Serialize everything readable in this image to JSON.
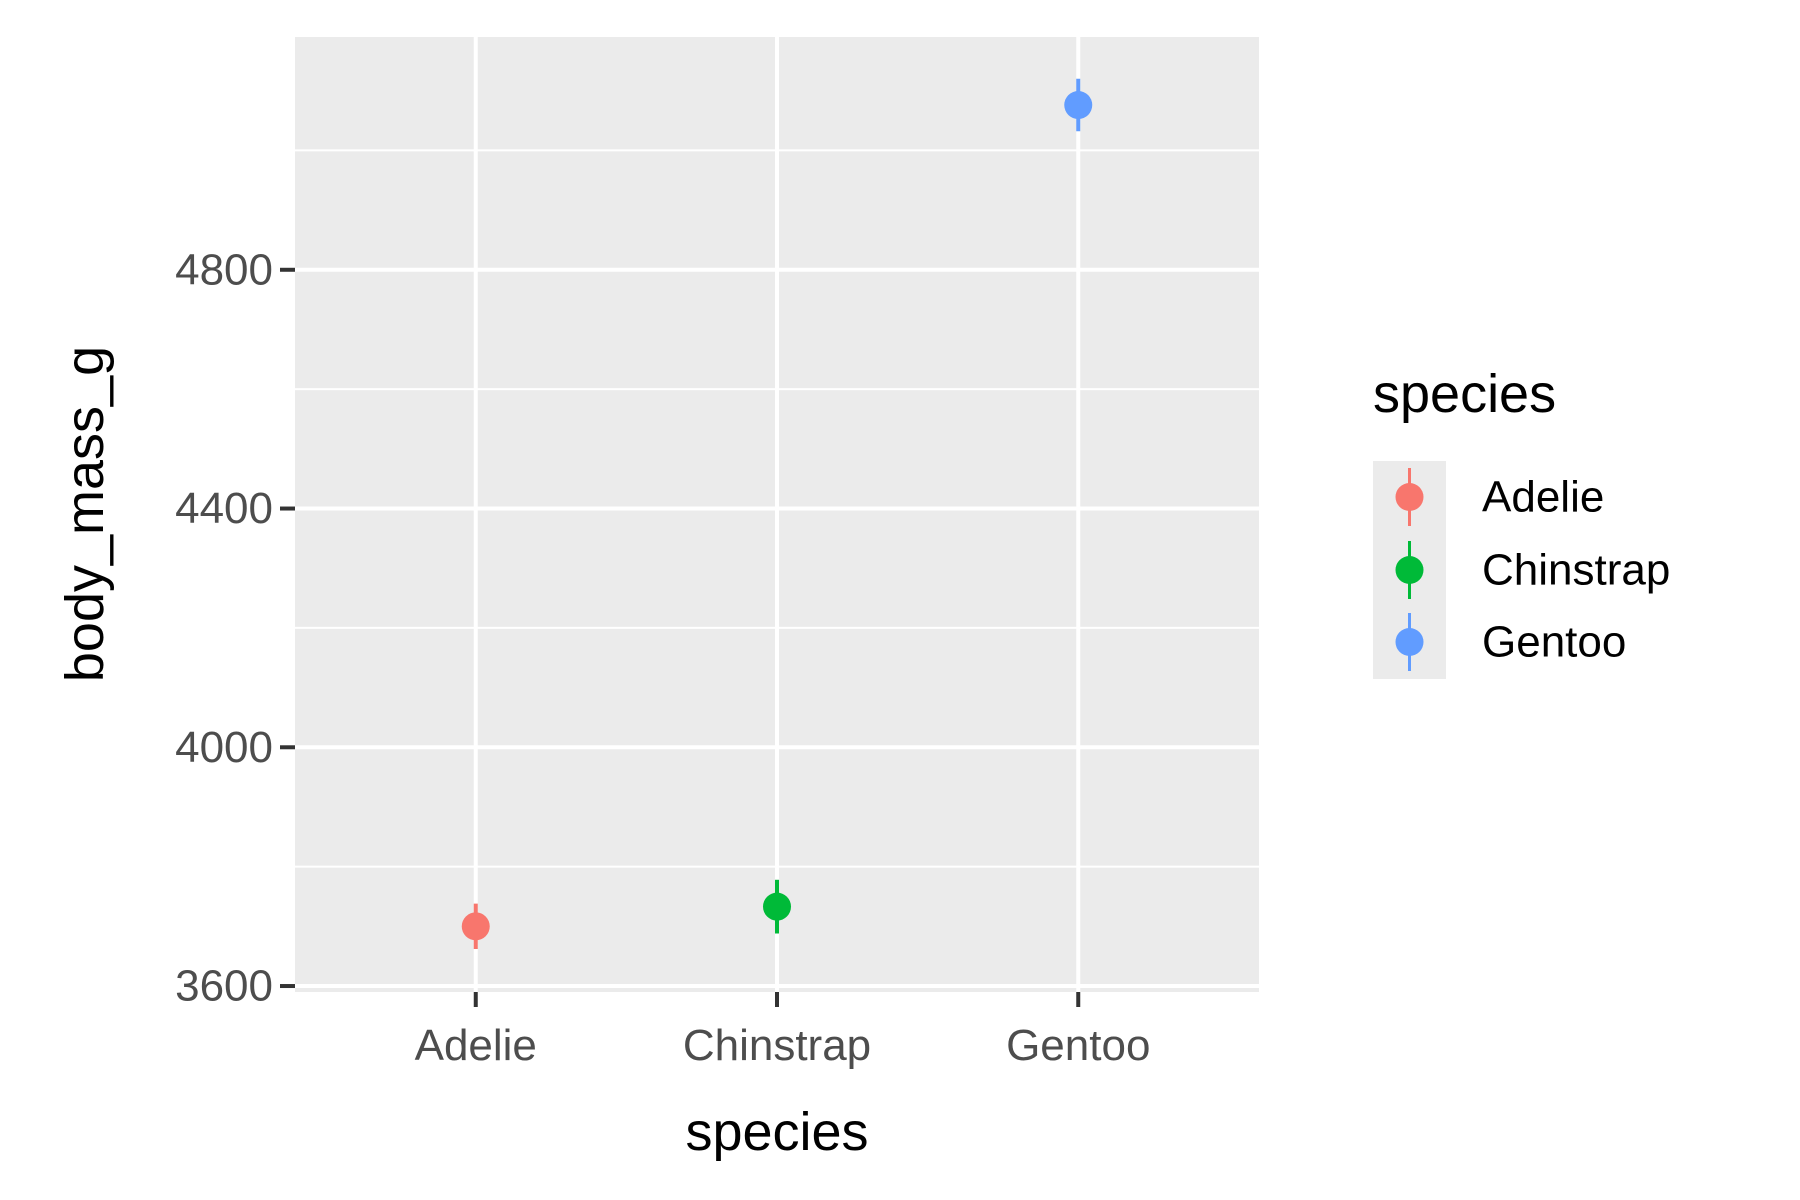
{
  "chart_data": {
    "type": "scatter",
    "title": "",
    "xlabel": "species",
    "ylabel": "body_mass_g",
    "categories": [
      "Adelie",
      "Chinstrap",
      "Gentoo"
    ],
    "ylim": [
      3590,
      5190
    ],
    "y_ticks": [
      3600,
      4000,
      4400,
      4800
    ],
    "y_tick_labels": [
      "3600",
      "4000",
      "4400",
      "4800"
    ],
    "grid": true,
    "series": [
      {
        "name": "Adelie",
        "x": "Adelie",
        "y": 3700,
        "ymin": 3662,
        "ymax": 3738,
        "color": "#F8766D"
      },
      {
        "name": "Chinstrap",
        "x": "Chinstrap",
        "y": 3733,
        "ymin": 3688,
        "ymax": 3778,
        "color": "#00BA38"
      },
      {
        "name": "Gentoo",
        "x": "Gentoo",
        "y": 5076,
        "ymin": 5032,
        "ymax": 5120,
        "color": "#619CFF"
      }
    ],
    "legend": {
      "title": "species",
      "position": "right",
      "entries": [
        "Adelie",
        "Chinstrap",
        "Gentoo"
      ]
    },
    "panel_background": "#EBEBEB",
    "grid_color": "#FFFFFF"
  }
}
